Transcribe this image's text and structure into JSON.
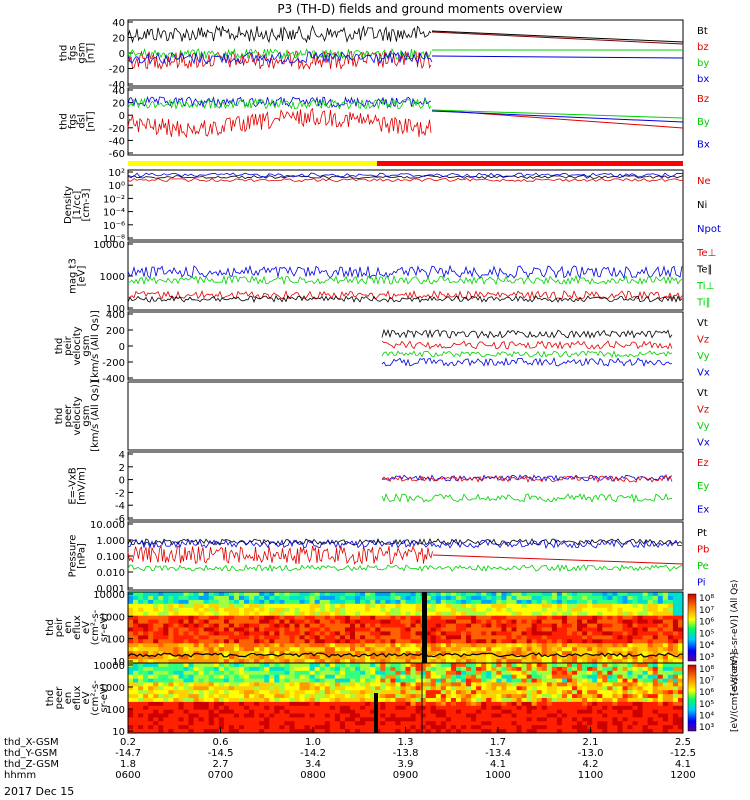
{
  "title": "P3 (TH-D) fields and ground moments overview",
  "date_label": "2017 Dec 15",
  "colors": {
    "black": "#000000",
    "red": "#e00000",
    "green": "#00d000",
    "blue": "#0000e0",
    "yellow": "#ffff00",
    "bar_red": "#ff0000"
  },
  "ephemeris": {
    "rows": [
      {
        "label": "thd_X-GSM",
        "values": [
          "0.2",
          "0.6",
          "1.0",
          "1.3",
          "1.7",
          "2.1",
          "2.5"
        ]
      },
      {
        "label": "thd_Y-GSM",
        "values": [
          "-14.7",
          "-14.5",
          "-14.2",
          "-13.8",
          "-13.4",
          "-13.0",
          "-12.5"
        ]
      },
      {
        "label": "thd_Z-GSM",
        "values": [
          "1.8",
          "2.7",
          "3.4",
          "3.9",
          "4.1",
          "4.2",
          "4.1"
        ]
      },
      {
        "label": "hhmm",
        "values": [
          "0600",
          "0700",
          "0800",
          "0900",
          "1000",
          "1100",
          "1200"
        ]
      }
    ]
  },
  "chart_data": [
    {
      "type": "line",
      "id": "fgs_gsm",
      "ylabel": [
        "thd",
        "fgs",
        "gsm",
        "[nT]"
      ],
      "yticks": [
        "40",
        "20",
        "0",
        "-20",
        "-40"
      ],
      "ylim": [
        -40,
        40
      ],
      "legend": [
        {
          "name": "Bt",
          "color": "#000000"
        },
        {
          "name": "bz",
          "color": "#e00000"
        },
        {
          "name": "by",
          "color": "#00d000"
        },
        {
          "name": "bx",
          "color": "#0000e0"
        }
      ]
    },
    {
      "type": "line",
      "id": "fgs_dsl",
      "ylabel": [
        "thd",
        "fgs",
        "dsl",
        "[nT]"
      ],
      "yticks": [
        "40",
        "20",
        "0",
        "-20",
        "-40",
        "-60"
      ],
      "ylim": [
        -70,
        40
      ],
      "legend": [
        {
          "name": "Bz",
          "color": "#e00000"
        },
        {
          "name": "By",
          "color": "#00d000"
        },
        {
          "name": "Bx",
          "color": "#0000e0"
        }
      ]
    },
    {
      "type": "line",
      "id": "density",
      "ylabel": [
        "Density",
        "[1/cc]",
        "[cm-3]"
      ],
      "yticks": [
        "10²",
        "10⁰",
        "10⁻²",
        "10⁻⁴",
        "10⁻⁶",
        "10⁻⁸"
      ],
      "log": true,
      "legend": [
        {
          "name": "Ne",
          "color": "#e00000"
        },
        {
          "name": "Ni",
          "color": "#000000"
        },
        {
          "name": "Npot",
          "color": "#0000e0"
        }
      ]
    },
    {
      "type": "line",
      "id": "temperature",
      "ylabel": [
        "mag t3",
        "[eV]"
      ],
      "yticks": [
        "10000",
        "1000",
        "100"
      ],
      "log": true,
      "legend": [
        {
          "name": "Te⊥",
          "color": "#e00000"
        },
        {
          "name": "Te∥",
          "color": "#000000"
        },
        {
          "name": "Ti⊥",
          "color": "#00d000"
        },
        {
          "name": "Ti∥",
          "color": "#00d000"
        }
      ]
    },
    {
      "type": "line",
      "id": "peir_velocity",
      "ylabel": [
        "thd",
        "peir",
        "velocity",
        "gsm",
        "[km/s (All Qs)]"
      ],
      "yticks": [
        "400",
        "200",
        "0",
        "-200",
        "-400"
      ],
      "ylim": [
        -400,
        400
      ],
      "legend": [
        {
          "name": "Vt",
          "color": "#000000"
        },
        {
          "name": "Vz",
          "color": "#e00000"
        },
        {
          "name": "Vy",
          "color": "#00d000"
        },
        {
          "name": "Vx",
          "color": "#0000e0"
        }
      ]
    },
    {
      "type": "line",
      "id": "peer_velocity",
      "ylabel": [
        "thd",
        "peer",
        "velocity",
        "gsm",
        "[km/s (All Qs)]"
      ],
      "yticks": [],
      "legend": [
        {
          "name": "Vt",
          "color": "#000000"
        },
        {
          "name": "Vz",
          "color": "#e00000"
        },
        {
          "name": "Vy",
          "color": "#00d000"
        },
        {
          "name": "Vx",
          "color": "#0000e0"
        }
      ]
    },
    {
      "type": "line",
      "id": "efield",
      "ylabel": [
        "E=-VxB",
        "[mV/m]"
      ],
      "yticks": [
        "4",
        "2",
        "0",
        "-2",
        "-4",
        "-6"
      ],
      "ylim": [
        -6,
        4
      ],
      "legend": [
        {
          "name": "Ez",
          "color": "#e00000"
        },
        {
          "name": "Ey",
          "color": "#00d000"
        },
        {
          "name": "Ex",
          "color": "#0000e0"
        }
      ]
    },
    {
      "type": "line",
      "id": "pressure",
      "ylabel": [
        "Pressure",
        "[nPa]"
      ],
      "yticks": [
        "10.000",
        "1.000",
        "0.100",
        "0.010",
        "0.001"
      ],
      "log": true,
      "legend": [
        {
          "name": "Pt",
          "color": "#000000"
        },
        {
          "name": "Pb",
          "color": "#e00000"
        },
        {
          "name": "Pe",
          "color": "#00d000"
        },
        {
          "name": "Pi",
          "color": "#0000e0"
        }
      ]
    },
    {
      "type": "heatmap",
      "id": "peir_en",
      "ylabel": [
        "thd",
        "peir",
        "en",
        "eflux",
        "eV",
        "(cm²-s-",
        "sr-eV)"
      ],
      "yticks": [
        "10000",
        "1000",
        "100",
        "10"
      ],
      "log": true,
      "colorbar": {
        "ticks": [
          "10⁸",
          "10⁷",
          "10⁶",
          "10⁵",
          "10⁴",
          "10³"
        ],
        "label": "[eV/(cm²-s-sr-eV)] (All Qs)"
      }
    },
    {
      "type": "heatmap",
      "id": "peer_en",
      "ylabel": [
        "thd",
        "peer",
        "en",
        "eflux",
        "eV",
        "(cm²-s-",
        "sr-eV)"
      ],
      "yticks": [
        "10000",
        "1000",
        "100",
        "10"
      ],
      "log": true,
      "colorbar": {
        "ticks": [
          "10⁸",
          "10⁷",
          "10⁶",
          "10⁵",
          "10⁴",
          "10³"
        ],
        "label": "[eV/(cm²-s-sr-eV)]"
      }
    }
  ]
}
